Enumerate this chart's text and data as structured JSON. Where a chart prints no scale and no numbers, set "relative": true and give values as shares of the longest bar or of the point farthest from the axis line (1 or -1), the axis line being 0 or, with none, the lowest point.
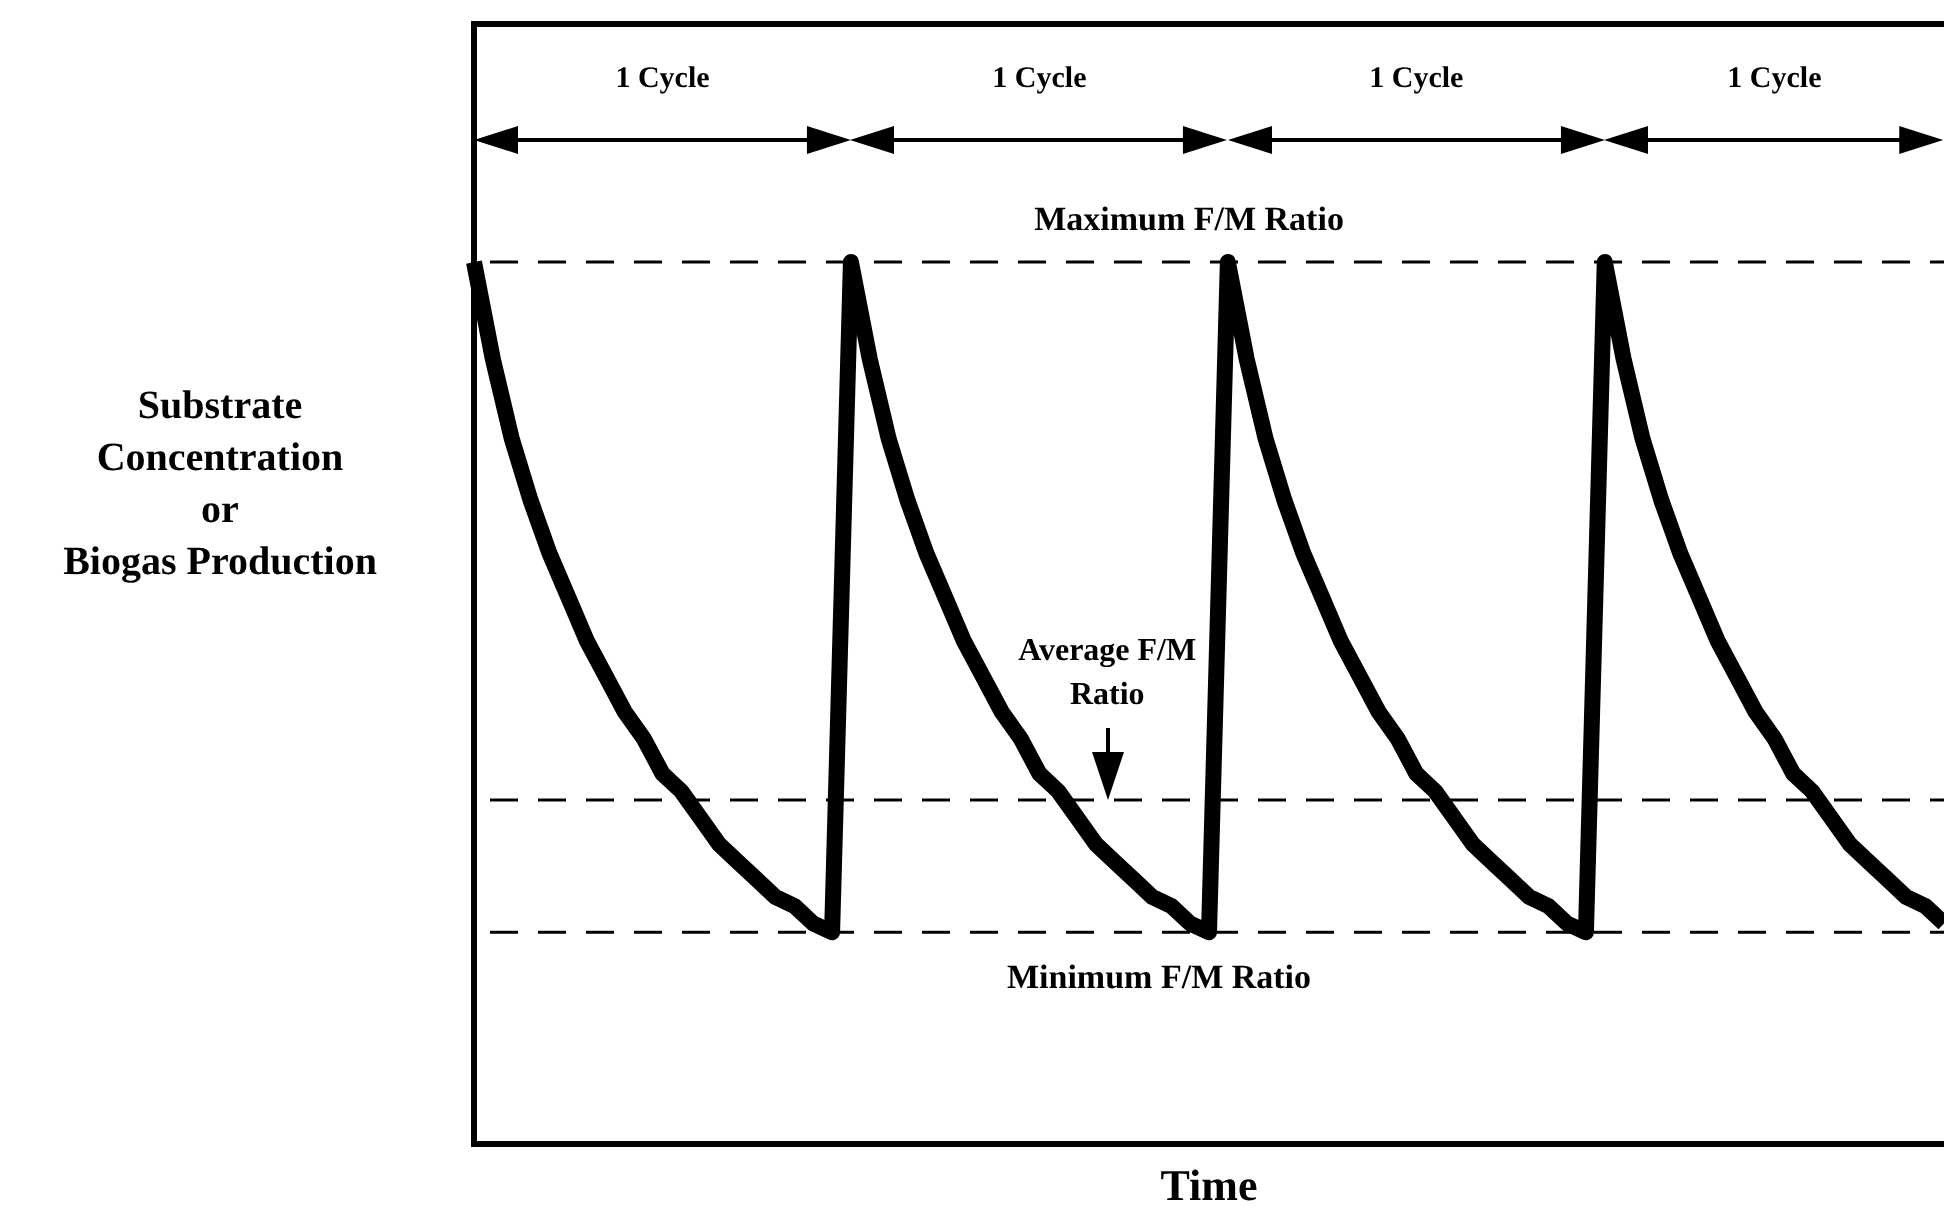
{
  "chart_data": {
    "type": "line",
    "relative": true,
    "xlabel": "Time",
    "ylabel": "Substrate Concentration\nor\nBiogas Production",
    "legend": false,
    "categories": [
      null,
      null,
      null,
      null,
      null,
      null,
      null,
      null,
      null,
      null,
      null,
      null,
      null,
      null,
      null,
      null,
      null,
      null,
      null,
      null,
      null,
      null,
      null,
      null,
      null,
      null,
      null,
      null,
      null,
      null,
      null,
      null,
      null,
      null,
      null,
      null,
      null,
      null,
      null,
      null,
      null,
      null,
      null,
      null,
      null,
      null,
      null,
      null,
      null,
      null,
      null,
      null,
      null,
      null,
      null,
      null,
      null,
      null,
      null,
      null,
      null,
      null,
      null,
      null,
      null,
      null,
      null,
      null,
      null,
      null,
      null,
      null,
      null,
      null,
      null,
      null,
      null,
      null,
      null
    ],
    "series": [
      {
        "color": "#000000",
        "values": [
          1,
          0.89,
          0.8,
          0.73,
          0.67,
          0.62,
          0.57,
          0.53,
          0.49,
          0.46,
          0.42,
          0.4,
          0.37,
          0.34,
          0.32,
          0.3,
          0.28,
          0.27,
          0.25,
          0.24,
          1,
          0.89,
          0.8,
          0.73,
          0.67,
          0.62,
          0.57,
          0.53,
          0.49,
          0.46,
          0.42,
          0.4,
          0.37,
          0.34,
          0.32,
          0.3,
          0.28,
          0.27,
          0.25,
          0.24,
          1,
          0.89,
          0.8,
          0.73,
          0.67,
          0.62,
          0.57,
          0.53,
          0.49,
          0.46,
          0.42,
          0.4,
          0.37,
          0.34,
          0.32,
          0.3,
          0.28,
          0.27,
          0.25,
          0.24,
          1,
          0.89,
          0.8,
          0.73,
          0.67,
          0.62,
          0.57,
          0.53,
          0.49,
          0.46,
          0.42,
          0.4,
          0.37,
          0.34,
          0.32,
          0.3,
          0.28,
          0.27,
          0.25
        ]
      }
    ],
    "ref_lines": [
      {
        "axis": "y",
        "value": 1,
        "label": "Maximum F/M Ratio",
        "color": "#000000",
        "line_style": "dashed"
      },
      {
        "axis": "y",
        "value": 0.39,
        "label": "Average F/M Ratio",
        "color": "#000000",
        "line_style": "dashed"
      },
      {
        "axis": "y",
        "value": 0.24,
        "label": "Minimum F/M Ratio",
        "color": "#000000",
        "line_style": "dashed"
      }
    ],
    "annotations": [
      "1 Cycle",
      "1 Cycle",
      "1 Cycle",
      "1 Cycle"
    ]
  }
}
